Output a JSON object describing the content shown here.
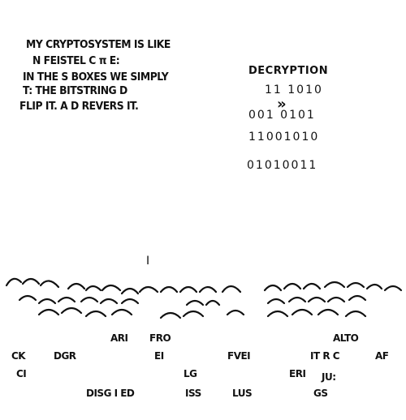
{
  "narration": {
    "lines": [
      "MY CRYPTOSYSTEM IS LIKE",
      "N FEISTEL C  π       E:",
      "IN THE S BOXES WE SIMPLY",
      "T:      THE BITSTRING  D",
      "FLIP IT. A  D REVERS   IT."
    ]
  },
  "decryption_panel": {
    "title": "DECRYPTION",
    "rows": [
      "11  1010",
      "001 0101",
      "11001010",
      "01010011"
    ],
    "arrow": "»"
  },
  "speech": {
    "fragment": "I"
  },
  "crowd_caption": {
    "line1_left": "ARI",
    "line1_mid": "FRO",
    "line1_right": "ALTO",
    "line2_a": "CK",
    "line2_b": "DGR",
    "line2_c": "EI",
    "line2_d": "FVEI",
    "line2_e": "IT R  C",
    "line2_f": "AF",
    "line3_a": "CI",
    "line3_b": "LG",
    "line3_c": "ERI",
    "line3_d": "JU:",
    "line4_a": "DISG  I  ED",
    "line4_b": "ISS",
    "line4_c": "LUS",
    "line4_d": "GS"
  }
}
